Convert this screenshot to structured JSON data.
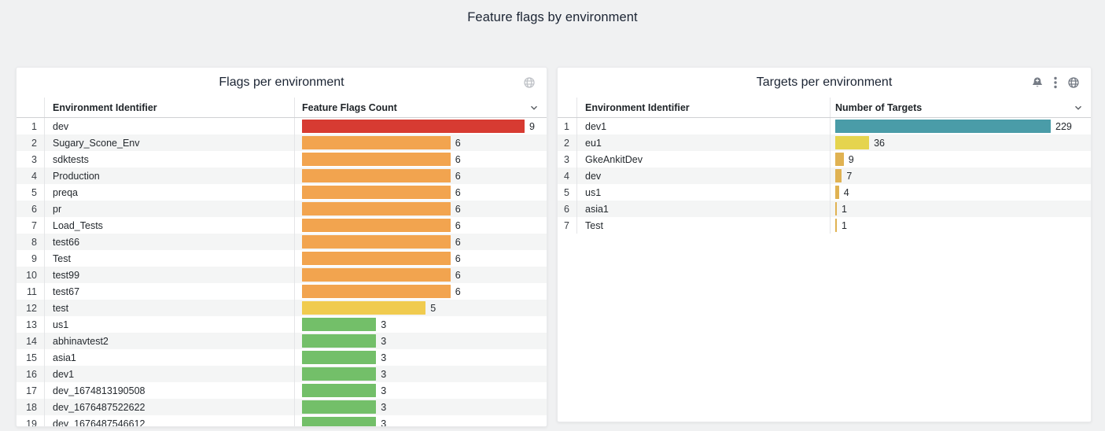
{
  "page": {
    "title": "Feature flags by environment",
    "background_color": "#f0f1f2"
  },
  "panels": [
    {
      "title": "Flags per environment",
      "header_icons": [
        "globe-icon"
      ],
      "table": {
        "columns": [
          "Environment Identifier",
          "Feature Flags Count"
        ],
        "sort_icon": "chevron-down-icon",
        "rows": [
          {
            "rank": "1",
            "name": "dev",
            "value": 9,
            "color": "#d73b32"
          },
          {
            "rank": "2",
            "name": "Sugary_Scone_Env",
            "value": 6,
            "color": "#f2a44f"
          },
          {
            "rank": "3",
            "name": "sdktests",
            "value": 6,
            "color": "#f2a44f"
          },
          {
            "rank": "4",
            "name": "Production",
            "value": 6,
            "color": "#f2a44f"
          },
          {
            "rank": "5",
            "name": "preqa",
            "value": 6,
            "color": "#f2a44f"
          },
          {
            "rank": "6",
            "name": "pr",
            "value": 6,
            "color": "#f2a44f"
          },
          {
            "rank": "7",
            "name": "Load_Tests",
            "value": 6,
            "color": "#f2a44f"
          },
          {
            "rank": "8",
            "name": "test66",
            "value": 6,
            "color": "#f2a44f"
          },
          {
            "rank": "9",
            "name": "Test",
            "value": 6,
            "color": "#f2a44f"
          },
          {
            "rank": "10",
            "name": "test99",
            "value": 6,
            "color": "#f2a44f"
          },
          {
            "rank": "11",
            "name": "test67",
            "value": 6,
            "color": "#f2a44f"
          },
          {
            "rank": "12",
            "name": "test",
            "value": 5,
            "color": "#f0cb4f"
          },
          {
            "rank": "13",
            "name": "us1",
            "value": 3,
            "color": "#73bf69"
          },
          {
            "rank": "14",
            "name": "abhinavtest2",
            "value": 3,
            "color": "#73bf69"
          },
          {
            "rank": "15",
            "name": "asia1",
            "value": 3,
            "color": "#73bf69"
          },
          {
            "rank": "16",
            "name": "dev1",
            "value": 3,
            "color": "#73bf69"
          },
          {
            "rank": "17",
            "name": "dev_1674813190508",
            "value": 3,
            "color": "#73bf69"
          },
          {
            "rank": "18",
            "name": "dev_1676487522622",
            "value": 3,
            "color": "#73bf69"
          },
          {
            "rank": "19",
            "name": "dev_1676487546612",
            "value": 3,
            "color": "#73bf69"
          }
        ]
      }
    },
    {
      "title": "Targets per environment",
      "header_icons": [
        "bell-plus-icon",
        "kebab-menu-icon",
        "globe-icon"
      ],
      "table": {
        "columns": [
          "Environment Identifier",
          "Number of Targets"
        ],
        "sort_icon": "chevron-down-icon",
        "rows": [
          {
            "rank": "1",
            "name": "dev1",
            "value": 229,
            "color": "#4a9ca8"
          },
          {
            "rank": "2",
            "name": "eu1",
            "value": 36,
            "color": "#e5d44e"
          },
          {
            "rank": "3",
            "name": "GkeAnkitDev",
            "value": 9,
            "color": "#e0b252"
          },
          {
            "rank": "4",
            "name": "dev",
            "value": 7,
            "color": "#e0b252"
          },
          {
            "rank": "5",
            "name": "us1",
            "value": 4,
            "color": "#e0b252"
          },
          {
            "rank": "6",
            "name": "asia1",
            "value": 1,
            "color": "#e0b252"
          },
          {
            "rank": "7",
            "name": "Test",
            "value": 1,
            "color": "#e0b252"
          }
        ]
      }
    }
  ]
}
